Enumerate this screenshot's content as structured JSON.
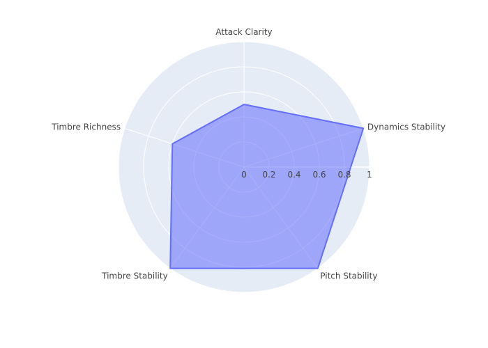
{
  "chart_data": {
    "type": "radar",
    "title": "",
    "categories": [
      "Attack Clarity",
      "Dynamics Stability",
      "Pitch Stability",
      "Timbre Stability",
      "Timbre Richness"
    ],
    "series": [
      {
        "values": [
          0.5,
          1.0,
          1.0,
          1.0,
          0.6
        ]
      }
    ],
    "radial_range": [
      0,
      1
    ],
    "radial_ticks": [
      "0",
      "0.2",
      "0.4",
      "0.6",
      "0.8",
      "1"
    ],
    "grid": true,
    "legend": "none",
    "colors": {
      "background": "#e5ecf6",
      "grid": "#ffffff",
      "fill": "#636efa",
      "line": "#636efa"
    }
  }
}
